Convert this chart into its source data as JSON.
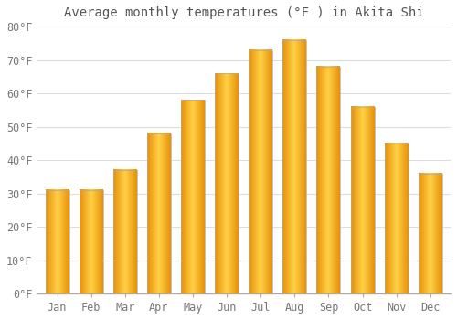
{
  "title": "Average monthly temperatures (°F ) in Akita Shi",
  "months": [
    "Jan",
    "Feb",
    "Mar",
    "Apr",
    "May",
    "Jun",
    "Jul",
    "Aug",
    "Sep",
    "Oct",
    "Nov",
    "Dec"
  ],
  "values": [
    31,
    31,
    37,
    48,
    58,
    66,
    73,
    76,
    68,
    56,
    45,
    36
  ],
  "bar_color_left": "#E8920A",
  "bar_color_center": "#FFD045",
  "bar_edge_color": "#B8860B",
  "background_color": "#FFFFFF",
  "plot_bg_color": "#FFFFFF",
  "grid_color": "#DDDDDD",
  "ylim": [
    0,
    80
  ],
  "yticks": [
    0,
    10,
    20,
    30,
    40,
    50,
    60,
    70,
    80
  ],
  "ytick_labels": [
    "0°F",
    "10°F",
    "20°F",
    "30°F",
    "40°F",
    "50°F",
    "60°F",
    "70°F",
    "80°F"
  ],
  "title_fontsize": 10,
  "tick_fontsize": 8.5,
  "font_family": "monospace",
  "bar_width": 0.7,
  "n_gradient_steps": 40
}
